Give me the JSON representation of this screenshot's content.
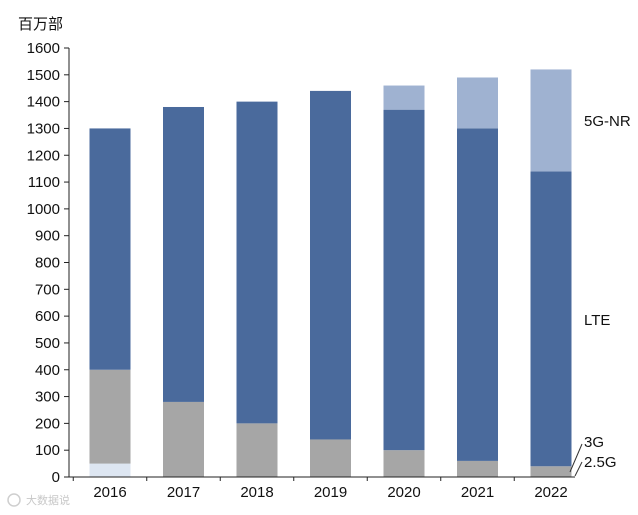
{
  "chart_data": {
    "type": "bar",
    "stacked": true,
    "ylabel": "百万部",
    "ylim": [
      0,
      1600
    ],
    "yticks": [
      0,
      100,
      200,
      300,
      400,
      500,
      600,
      700,
      800,
      900,
      1000,
      1100,
      1200,
      1300,
      1400,
      1500,
      1600
    ],
    "categories": [
      "2016",
      "2017",
      "2018",
      "2019",
      "2020",
      "2021",
      "2022"
    ],
    "grid": false,
    "legend_placement": "right (direct labels)",
    "series": [
      {
        "name": "2.5G",
        "color": "#dde6f2",
        "values": [
          50,
          0,
          0,
          0,
          0,
          0,
          0
        ]
      },
      {
        "name": "3G",
        "color": "#a6a6a6",
        "values": [
          350,
          280,
          200,
          140,
          100,
          60,
          40
        ]
      },
      {
        "name": "LTE",
        "color": "#4a6a9c",
        "values": [
          900,
          1100,
          1200,
          1300,
          1270,
          1240,
          1100
        ]
      },
      {
        "name": "5G-NR",
        "color": "#9fb2d1",
        "values": [
          0,
          0,
          0,
          0,
          90,
          190,
          380
        ]
      }
    ],
    "watermark": "大数据说"
  }
}
